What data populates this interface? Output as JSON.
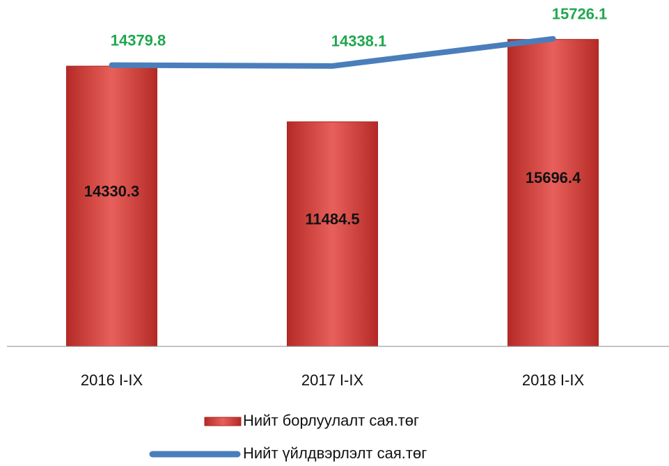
{
  "chart_data": {
    "type": "bar",
    "categories": [
      "2016 I-IX",
      "2017 I-IX",
      "2018 I-IX"
    ],
    "series": [
      {
        "name": "Нийт борлуулалт сая.төг",
        "type": "bar",
        "color": "#d9433f",
        "values": [
          14330.3,
          11484.5,
          15696.4
        ]
      },
      {
        "name": "Нийт үйлдвэрлэлт сая.төг",
        "type": "line",
        "color": "#4a7ebb",
        "label_color": "#1fa84f",
        "values": [
          14379.8,
          14338.1,
          15726.1
        ]
      }
    ],
    "ylim": [
      0,
      17000
    ],
    "legend": "bottom"
  }
}
